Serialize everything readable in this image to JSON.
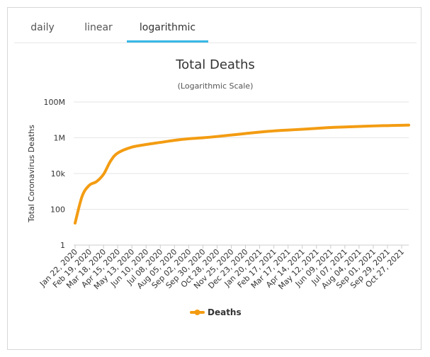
{
  "tabs": [
    {
      "label": "daily",
      "active": false
    },
    {
      "label": "linear",
      "active": false
    },
    {
      "label": "logarithmic",
      "active": true
    }
  ],
  "accent_color": "#37b8e6",
  "chart_data": {
    "type": "line",
    "title": "Total Deaths",
    "subtitle": "(Logarithmic Scale)",
    "xlabel": "",
    "ylabel": "Total Coronavirus Deaths",
    "y_scale": "log",
    "ylim": [
      1,
      100000000
    ],
    "y_ticks": [
      {
        "value": 1,
        "label": "1"
      },
      {
        "value": 100,
        "label": "100"
      },
      {
        "value": 10000,
        "label": "10k"
      },
      {
        "value": 1000000,
        "label": "1M"
      },
      {
        "value": 100000000,
        "label": "100M"
      }
    ],
    "grid": true,
    "legend_position": "bottom-center",
    "x_tick_labels": [
      "Jan 22, 2020",
      "Feb 19, 2020",
      "Mar 18, 2020",
      "Apr 15, 2020",
      "May 13, 2020",
      "Jun 10, 2020",
      "Jul 08, 2020",
      "Aug 05, 2020",
      "Sep 02, 2020",
      "Sep 30, 2020",
      "Oct 28, 2020",
      "Nov 25, 2020",
      "Dec 23, 2020",
      "Jan 20, 2021",
      "Feb 17, 2021",
      "Mar 17, 2021",
      "Apr 14, 2021",
      "May 12, 2021",
      "Jun 09, 2021",
      "Jul 07, 2021",
      "Aug 04, 2021",
      "Sep 01, 2021",
      "Sep 29, 2021",
      "Oct 27, 2021"
    ],
    "series": [
      {
        "name": "Deaths",
        "color": "#f39c12",
        "x": [
          "Jan 22, 2020",
          "Feb 05, 2020",
          "Feb 19, 2020",
          "Mar 04, 2020",
          "Mar 18, 2020",
          "Apr 01, 2020",
          "Apr 15, 2020",
          "May 13, 2020",
          "Jun 10, 2020",
          "Jul 08, 2020",
          "Aug 05, 2020",
          "Sep 02, 2020",
          "Sep 30, 2020",
          "Oct 28, 2020",
          "Nov 25, 2020",
          "Dec 23, 2020",
          "Jan 20, 2021",
          "Feb 17, 2021",
          "Mar 17, 2021",
          "Apr 14, 2021",
          "May 12, 2021",
          "Jun 09, 2021",
          "Jul 07, 2021",
          "Aug 04, 2021",
          "Sep 01, 2021",
          "Sep 29, 2021",
          "Oct 27, 2021",
          "Nov 10, 2021"
        ],
        "values": [
          17,
          550,
          2200,
          3500,
          9000,
          50000,
          140000,
          300000,
          420000,
          550000,
          720000,
          880000,
          1000000,
          1180000,
          1420000,
          1730000,
          2080000,
          2420000,
          2700000,
          2990000,
          3340000,
          3760000,
          4000000,
          4280000,
          4580000,
          4790000,
          4990000,
          5100000
        ]
      }
    ]
  }
}
